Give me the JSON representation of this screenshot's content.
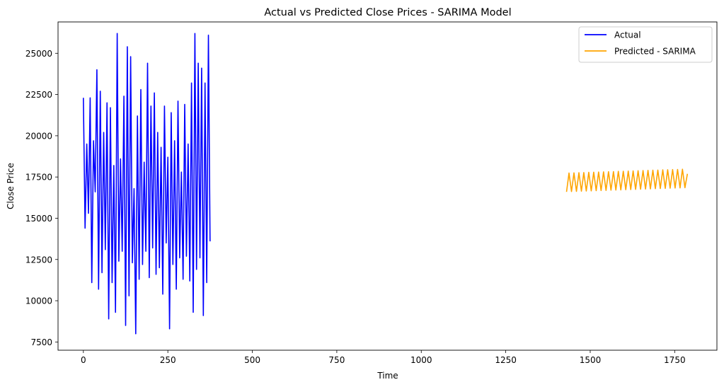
{
  "chart_data": {
    "type": "line",
    "title": "Actual vs Predicted Close Prices - SARIMA Model",
    "xlabel": "Time",
    "ylabel": "Close Price",
    "xlim": [
      -75,
      1875
    ],
    "ylim": [
      7000,
      26900
    ],
    "xticks": [
      0,
      250,
      500,
      750,
      1000,
      1250,
      1500,
      1750
    ],
    "yticks": [
      7500,
      10000,
      12500,
      15000,
      17500,
      20000,
      22500,
      25000
    ],
    "grid": false,
    "legend_position": "top-right",
    "series": [
      {
        "name": "Actual",
        "color": "#0000ff",
        "x_start": 0,
        "x_step": 5,
        "values": [
          22300,
          14400,
          19500,
          15300,
          22300,
          11100,
          19700,
          16600,
          24000,
          10700,
          22700,
          11700,
          20200,
          13100,
          22000,
          8900,
          21700,
          11100,
          18200,
          9300,
          26200,
          12400,
          18600,
          13000,
          22400,
          8500,
          25400,
          10300,
          24800,
          12300,
          16800,
          8000,
          21200,
          11300,
          22800,
          12200,
          18400,
          13000,
          24400,
          11400,
          21800,
          13200,
          22600,
          11600,
          20200,
          12000,
          19300,
          10400,
          21800,
          13500,
          18700,
          8300,
          21400,
          12200,
          19700,
          10700,
          22100,
          12600,
          17800,
          11300,
          21900,
          12700,
          19500,
          11200,
          23200,
          9300,
          26200,
          11900,
          24400,
          12600,
          24100,
          9100,
          23200,
          11100,
          26100,
          13600
        ]
      },
      {
        "name": "Predicted - SARIMA",
        "color": "#ffa500",
        "x_start": 1430,
        "x_step": 7.3,
        "values": [
          16600,
          17740,
          16620,
          17750,
          16630,
          17760,
          16640,
          17770,
          16650,
          17780,
          16660,
          17790,
          16670,
          17800,
          16680,
          17810,
          16690,
          17820,
          16700,
          17830,
          16710,
          17840,
          16720,
          17850,
          16730,
          17860,
          16740,
          17870,
          16750,
          17880,
          16760,
          17890,
          16770,
          17900,
          16780,
          17910,
          16790,
          17920,
          16800,
          17930,
          16810,
          17940,
          16820,
          17950,
          16830,
          17960,
          16840,
          17970,
          16850,
          17690
        ]
      }
    ]
  }
}
